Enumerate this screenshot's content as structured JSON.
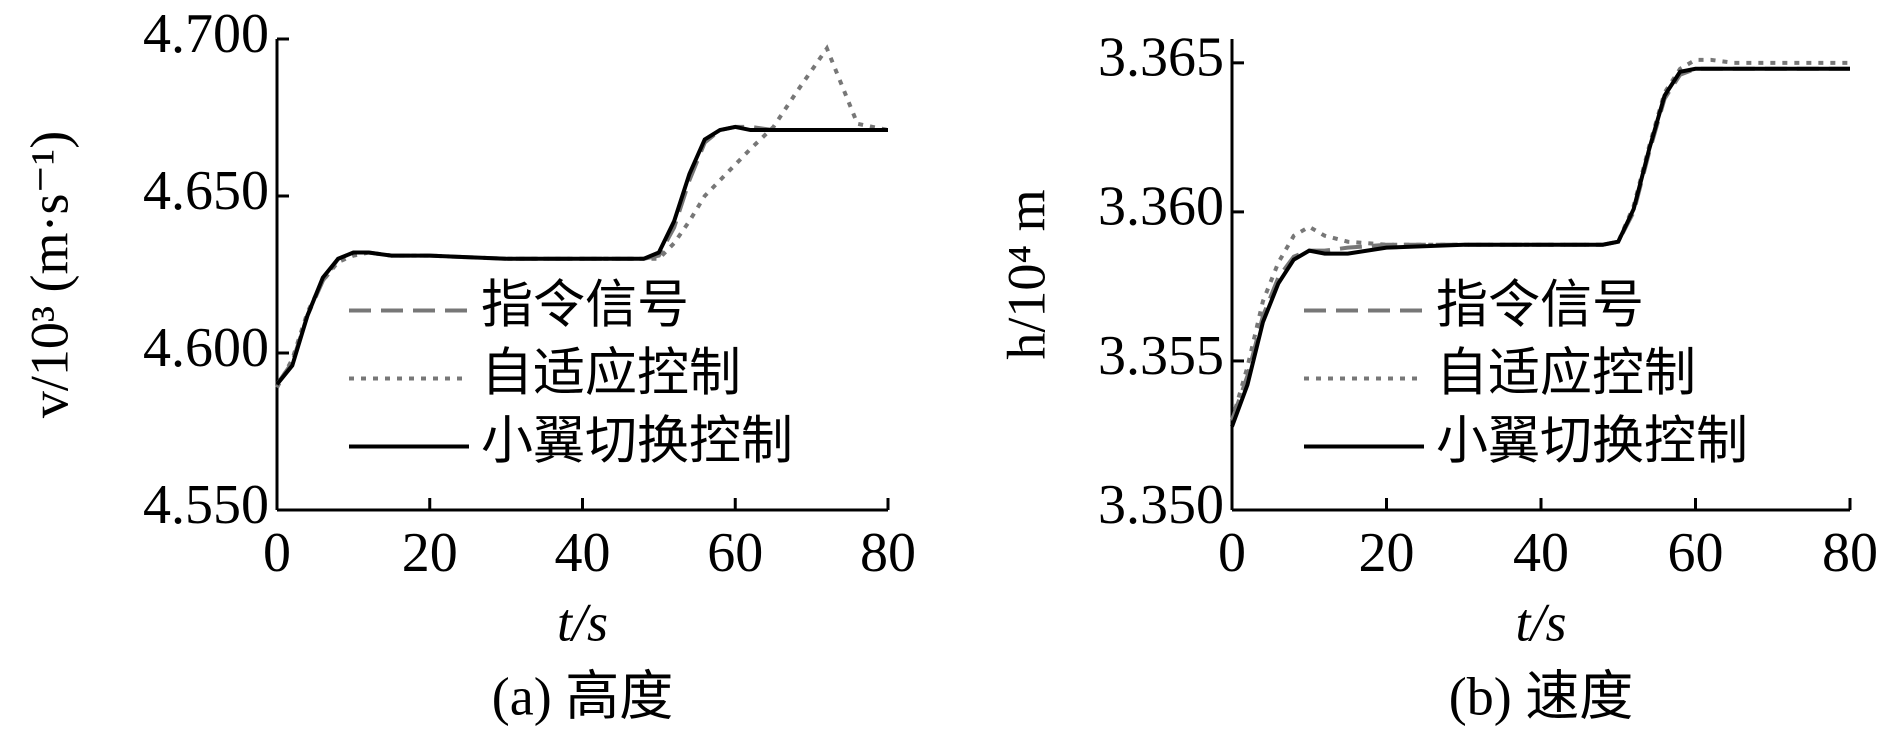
{
  "chart_data": [
    {
      "type": "line",
      "caption": "(a) 高度",
      "xlabel": "t/s",
      "ylabel": "v/10³ (m·s⁻¹)",
      "x": [
        0,
        2,
        4,
        6,
        8,
        10,
        12,
        15,
        20,
        30,
        40,
        48,
        50,
        52,
        54,
        56,
        58,
        60,
        62,
        65,
        68,
        70,
        72,
        74,
        76,
        78,
        80
      ],
      "xlim": [
        0,
        80
      ],
      "xticks": [
        0,
        20,
        40,
        60,
        80
      ],
      "ylim": [
        4.55,
        4.7
      ],
      "yticks": [
        {
          "value": 4.55,
          "label": "4.550"
        },
        {
          "value": 4.6,
          "label": "4.600"
        },
        {
          "value": 4.65,
          "label": "4.650"
        },
        {
          "value": 4.7,
          "label": "4.700"
        }
      ],
      "legend": "center-left",
      "series": [
        {
          "name": "指令信号",
          "color": "#777777",
          "style": "dashed",
          "values": [
            4.59,
            4.597,
            4.612,
            4.623,
            4.63,
            4.632,
            4.632,
            4.631,
            4.631,
            4.63,
            4.63,
            4.63,
            4.631,
            4.64,
            4.655,
            4.667,
            4.671,
            4.672,
            4.672,
            4.671,
            4.671,
            4.671,
            4.671,
            4.671,
            4.671,
            4.671,
            4.671
          ]
        },
        {
          "name": "自适应控制",
          "color": "#777777",
          "style": "dotted",
          "values": [
            4.589,
            4.598,
            4.613,
            4.623,
            4.629,
            4.631,
            4.632,
            4.631,
            4.631,
            4.63,
            4.63,
            4.63,
            4.63,
            4.635,
            4.642,
            4.65,
            4.655,
            4.66,
            4.665,
            4.672,
            4.683,
            4.69,
            4.697,
            4.685,
            4.673,
            4.672,
            4.671
          ]
        },
        {
          "name": "小翼切换控制",
          "color": "#000000",
          "style": "solid",
          "values": [
            4.59,
            4.596,
            4.612,
            4.624,
            4.63,
            4.632,
            4.632,
            4.631,
            4.631,
            4.63,
            4.63,
            4.63,
            4.632,
            4.642,
            4.657,
            4.668,
            4.671,
            4.672,
            4.671,
            4.671,
            4.671,
            4.671,
            4.671,
            4.671,
            4.671,
            4.671,
            4.671
          ]
        }
      ]
    },
    {
      "type": "line",
      "caption": "(b) 速度",
      "xlabel": "t/s",
      "ylabel": "h/10⁴ m",
      "x": [
        0,
        2,
        4,
        6,
        8,
        10,
        12,
        15,
        20,
        30,
        40,
        48,
        50,
        52,
        54,
        56,
        58,
        60,
        62,
        65,
        68,
        70,
        72,
        74,
        76,
        78,
        80
      ],
      "xlim": [
        0,
        80
      ],
      "xticks": [
        0,
        20,
        40,
        60,
        80
      ],
      "ylim": [
        3.35,
        3.3658
      ],
      "yticks": [
        {
          "value": 3.35,
          "label": "3.350"
        },
        {
          "value": 3.355,
          "label": "3.355"
        },
        {
          "value": 3.36,
          "label": "3.360"
        },
        {
          "value": 3.365,
          "label": "3.365"
        }
      ],
      "legend": "center-left",
      "series": [
        {
          "name": "指令信号",
          "color": "#777777",
          "style": "dashed",
          "values": [
            3.353,
            3.3545,
            3.3565,
            3.3578,
            3.3585,
            3.3587,
            3.3587,
            3.3588,
            3.3589,
            3.3589,
            3.3589,
            3.3589,
            3.359,
            3.36,
            3.362,
            3.3638,
            3.3646,
            3.3648,
            3.3648,
            3.3648,
            3.3648,
            3.3648,
            3.3648,
            3.3648,
            3.3648,
            3.3648,
            3.3648
          ]
        },
        {
          "name": "自适应控制",
          "color": "#777777",
          "style": "dotted",
          "values": [
            3.353,
            3.3548,
            3.357,
            3.3583,
            3.3592,
            3.3595,
            3.3592,
            3.359,
            3.3589,
            3.3589,
            3.3589,
            3.3589,
            3.359,
            3.3602,
            3.3622,
            3.364,
            3.3648,
            3.3651,
            3.3651,
            3.365,
            3.365,
            3.365,
            3.365,
            3.365,
            3.365,
            3.365,
            3.365
          ]
        },
        {
          "name": "小翼切换控制",
          "color": "#000000",
          "style": "solid",
          "values": [
            3.3528,
            3.3542,
            3.3563,
            3.3576,
            3.3584,
            3.3587,
            3.3586,
            3.3586,
            3.3588,
            3.3589,
            3.3589,
            3.3589,
            3.359,
            3.3601,
            3.3621,
            3.3639,
            3.3647,
            3.3648,
            3.3648,
            3.3648,
            3.3648,
            3.3648,
            3.3648,
            3.3648,
            3.3648,
            3.3648,
            3.3648
          ]
        }
      ]
    }
  ]
}
